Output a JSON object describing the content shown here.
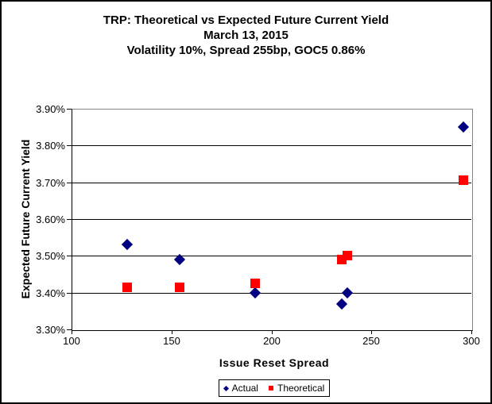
{
  "chart_data": {
    "type": "scatter",
    "title": "TRP: Theoretical vs Expected Future Current Yield",
    "subtitle1": "March 13, 2015",
    "subtitle2": "Volatility 10%, Spread 255bp, GOC5 0.86%",
    "xlabel": "Issue Reset Spread",
    "ylabel": "Expected Future Current Yield",
    "xlim": [
      100,
      300
    ],
    "ylim": [
      3.3,
      3.9
    ],
    "x_ticks": [
      100,
      150,
      200,
      250,
      300
    ],
    "y_ticks": [
      3.9,
      3.8,
      3.7,
      3.6,
      3.5,
      3.4,
      3.3
    ],
    "y_tick_suffix": "%",
    "grid": "horizontal-only",
    "legend_position": "bottom-center",
    "series": [
      {
        "name": "Actual",
        "marker": "diamond",
        "color": "#000080",
        "points": [
          [
            128,
            3.53
          ],
          [
            154,
            3.49
          ],
          [
            192,
            3.4
          ],
          [
            235,
            3.37
          ],
          [
            238,
            3.4
          ],
          [
            296,
            3.85
          ]
        ]
      },
      {
        "name": "Theoretical",
        "marker": "square",
        "color": "#FF0000",
        "points": [
          [
            128,
            3.415
          ],
          [
            154,
            3.415
          ],
          [
            192,
            3.425
          ],
          [
            235,
            3.49
          ],
          [
            238,
            3.5
          ],
          [
            296,
            3.705
          ]
        ]
      }
    ]
  },
  "legend": {
    "items": [
      {
        "label": "Actual",
        "marker": "diamond",
        "color": "#000080"
      },
      {
        "label": "Theoretical",
        "marker": "square",
        "color": "#FF0000"
      }
    ]
  }
}
